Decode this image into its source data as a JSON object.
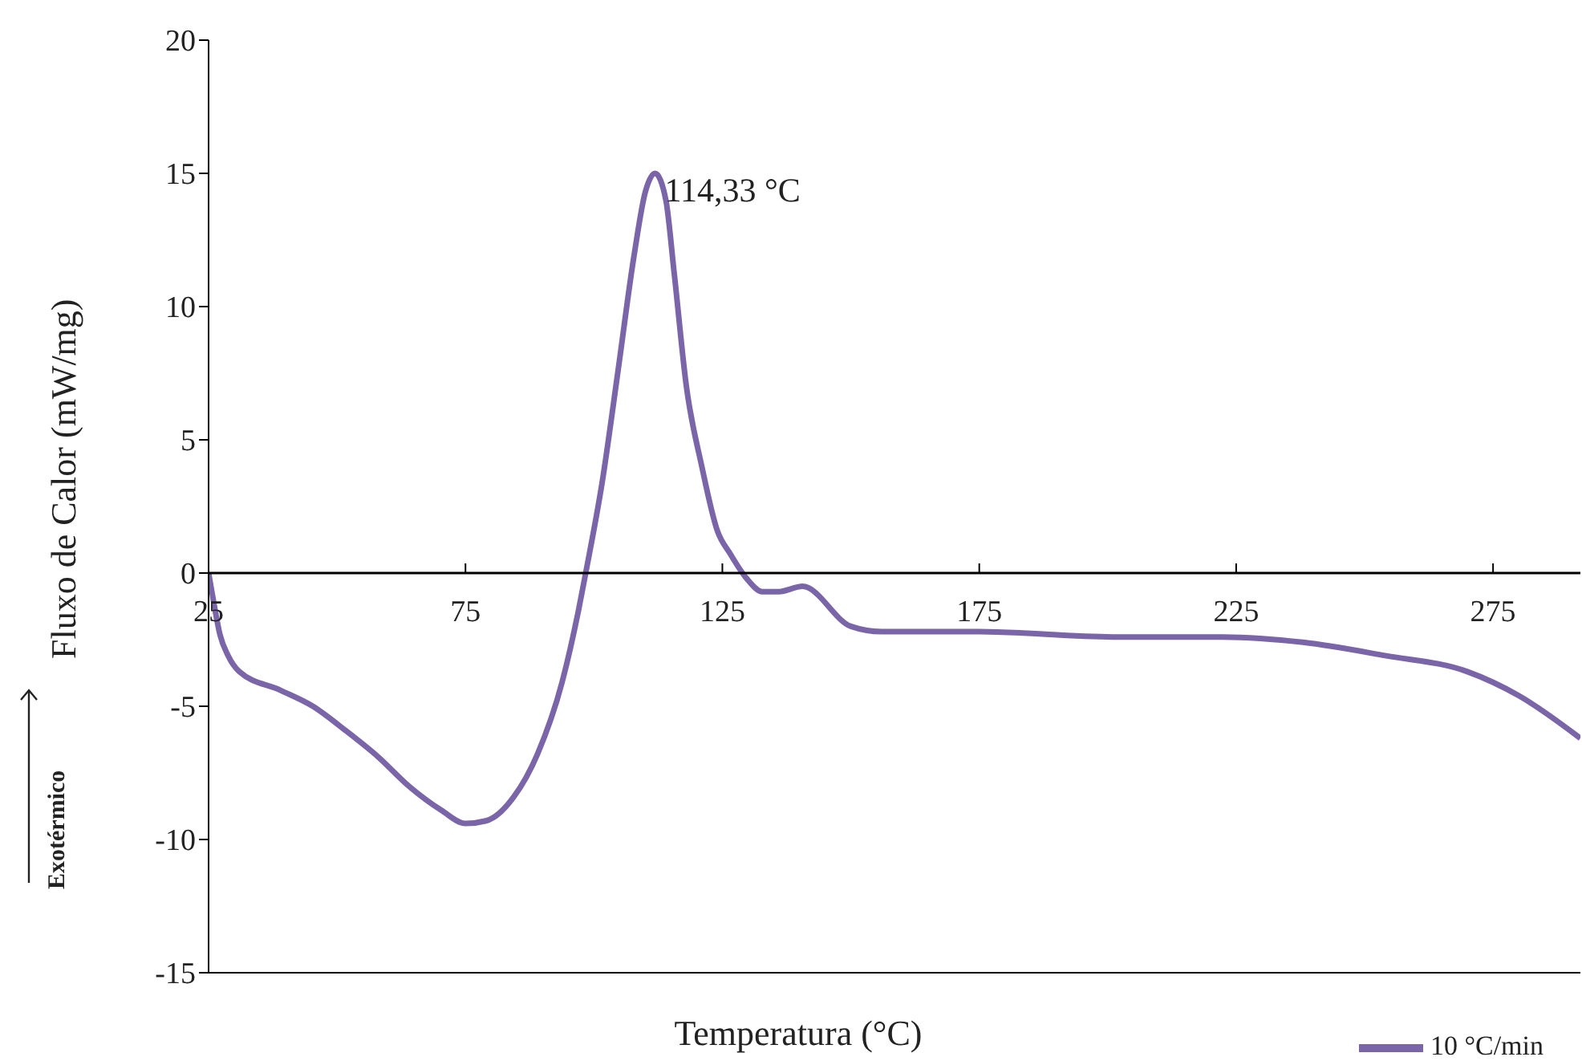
{
  "chart_data": {
    "type": "line",
    "xlabel": "Temperatura (°C)",
    "ylabel": "Fluxo de Calor (mW/mg)",
    "annotations": [
      {
        "text": "114,33 °C",
        "x": 111.9,
        "y": 15.0
      },
      "Exotérmico"
    ],
    "x": [
      25,
      26,
      27.2,
      28.8,
      31,
      39,
      45.3,
      51.6,
      58,
      64,
      70.3,
      75,
      79,
      84.4,
      89,
      93.8,
      97,
      98.4,
      101.6,
      104.7,
      107.8,
      110,
      111.9,
      114,
      115.6,
      118,
      121,
      124,
      126.6,
      129.7,
      132.8,
      136,
      140.6,
      150,
      156,
      175,
      201,
      222,
      238,
      254,
      270,
      280,
      292
    ],
    "series": [
      {
        "name": "10 °C/min",
        "color": "#7a65a8",
        "values": [
          0,
          -1.1,
          -2.3,
          -3.1,
          -3.7,
          -4.4,
          -5.0,
          -5.9,
          -6.9,
          -8.0,
          -8.9,
          -9.4,
          -9.3,
          -8.4,
          -6.8,
          -4.1,
          -1.4,
          0,
          3.4,
          7.6,
          11.9,
          14.3,
          15.0,
          14.0,
          11.3,
          7.0,
          4.0,
          1.6,
          0.7,
          -0.2,
          -0.7,
          -0.7,
          -0.5,
          -2.0,
          -2.2,
          -2.2,
          -2.4,
          -2.4,
          -2.6,
          -3.1,
          -3.7,
          -4.6,
          -6.2
        ]
      }
    ],
    "xlim": [
      25,
      292
    ],
    "xticks": [
      25,
      75,
      125,
      175,
      225,
      275
    ],
    "ylim": [
      -15,
      20
    ],
    "yticks": [
      -15,
      -10,
      -5,
      0,
      5,
      10,
      15,
      20
    ],
    "grid": false,
    "legend": "bottom right",
    "marker": "none",
    "line_style": "solid"
  }
}
